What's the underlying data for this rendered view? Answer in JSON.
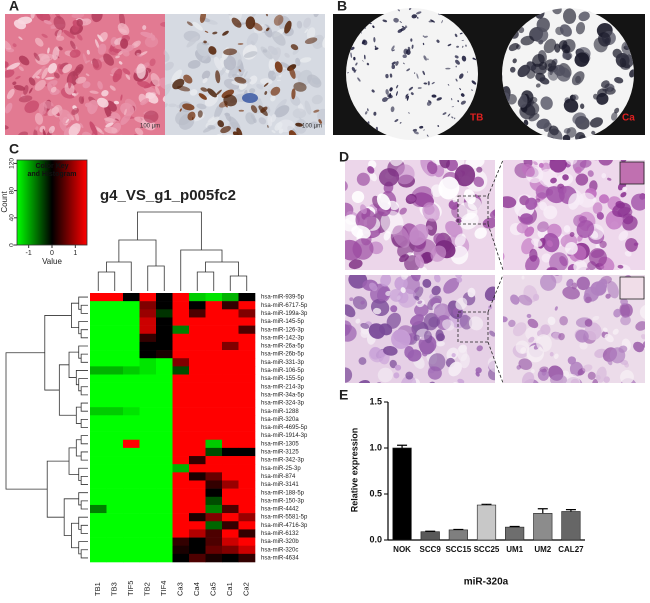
{
  "panel_labels": [
    "A",
    "B",
    "C",
    "D",
    "E"
  ],
  "panel_a": {
    "scale_bars": [
      "100 µm",
      "100 µm"
    ]
  },
  "panel_b": {
    "labels": [
      "TB",
      "Ca"
    ]
  },
  "chart_data": [
    {
      "type": "heatmap",
      "title": "g4_VS_g1_p005fc2",
      "color_key": {
        "title": [
          "Color Key",
          "and Histogram"
        ],
        "xlabel": "Value",
        "ylabel": "Count",
        "xlim": [
          -1.5,
          1.5
        ],
        "xticks": [
          -1,
          0,
          1
        ],
        "ylim": [
          0,
          125
        ],
        "yticks": [
          0,
          40,
          80,
          120
        ]
      },
      "colors": {
        "low": "#00ff00",
        "mid": "#000000",
        "high": "#ff0000"
      },
      "columns": [
        "TB1",
        "TB3",
        "TIF5",
        "TB2",
        "TIF4",
        "Ca3",
        "Ca4",
        "Ca5",
        "Ca1",
        "Ca2"
      ],
      "rows": [
        "hsa-miR-939-5p",
        "hsa-miR-6717-5p",
        "hsa-miR-199a-3p",
        "hsa-miR-145-5p",
        "hsa-miR-126-3p",
        "hsa-miR-142-3p",
        "hsa-miR-26a-5p",
        "hsa-miR-26b-5p",
        "hsa-miR-331-3p",
        "hsa-miR-106-5p",
        "hsa-miR-155-5p",
        "hsa-miR-214-3p",
        "hsa-miR-34a-5p",
        "hsa-miR-324-3p",
        "hsa-miR-1288",
        "hsa-miR-320a",
        "hsa-miR-4695-5p",
        "hsa-miR-1914-3p",
        "hsa-miR-1305",
        "hsa-miR-3125",
        "hsa-miR-342-3p",
        "hsa-miR-25-3p",
        "hsa-miR-874",
        "hsa-miR-3141",
        "hsa-miR-188-5p",
        "hsa-miR-150-3p",
        "hsa-miR-4442",
        "hsa-miR-5581-5p",
        "hsa-miR-4716-3p",
        "hsa-miR-6132",
        "hsa-miR-320b",
        "hsa-miR-320c",
        "hsa-miR-4634"
      ],
      "values": [
        [
          1,
          1,
          0,
          1,
          0,
          1,
          -0.8,
          -0.9,
          -0.7,
          0
        ],
        [
          -1,
          -1,
          -1,
          0.5,
          0,
          1,
          0,
          1,
          0.2,
          1
        ],
        [
          -1,
          -1,
          -1,
          0.6,
          -0.2,
          1,
          0.3,
          1,
          1,
          0.5
        ],
        [
          -1,
          -1,
          -1,
          0.8,
          0,
          1,
          1,
          1,
          1,
          1
        ],
        [
          -1,
          -1,
          -1,
          0.8,
          0,
          -0.5,
          1,
          1,
          1,
          0.3
        ],
        [
          -1,
          -1,
          -1,
          0.2,
          0,
          1,
          1,
          1,
          1,
          1
        ],
        [
          -1,
          -1,
          -1,
          0,
          0,
          1,
          1,
          1,
          0.5,
          1
        ],
        [
          -1,
          -1,
          -1,
          0,
          0.1,
          1,
          1,
          1,
          1,
          1
        ],
        [
          -1,
          -1,
          -1,
          -0.9,
          -1,
          0.5,
          1,
          1,
          1,
          1
        ],
        [
          -0.7,
          -0.7,
          -0.8,
          -0.9,
          -1,
          -0.3,
          1,
          1,
          1,
          1
        ],
        [
          -1,
          -1,
          -1,
          -1,
          -1,
          1,
          1,
          1,
          1,
          1
        ],
        [
          -1,
          -1,
          -1,
          -1,
          -1,
          1,
          1,
          1,
          1,
          1
        ],
        [
          -1,
          -1,
          -1,
          -1,
          -1,
          1,
          1,
          1,
          1,
          1
        ],
        [
          -1,
          -1,
          -1,
          -1,
          -1,
          1,
          1,
          1,
          1,
          1
        ],
        [
          -0.8,
          -0.8,
          -0.9,
          -1,
          -1,
          1,
          1,
          1,
          1,
          1
        ],
        [
          -1,
          -1,
          -1,
          -1,
          -1,
          1,
          1,
          1,
          1,
          1
        ],
        [
          -1,
          -1,
          -1,
          -1,
          -1,
          1,
          1,
          1,
          1,
          1
        ],
        [
          -1,
          -1,
          -1,
          -1,
          -1,
          1,
          1,
          1,
          1,
          1
        ],
        [
          -1,
          -1,
          1,
          -1,
          -1,
          1,
          1,
          -0.8,
          1,
          1
        ],
        [
          -1,
          -1,
          -1,
          -1,
          -1,
          1,
          1,
          -0.3,
          0,
          0
        ],
        [
          -1,
          -1,
          -1,
          -1,
          -1,
          1,
          0.2,
          1,
          1,
          1
        ],
        [
          -1,
          -1,
          -1,
          -1,
          -1,
          -0.7,
          1,
          1,
          1,
          1
        ],
        [
          -1,
          -1,
          -1,
          -1,
          -1,
          1,
          0.1,
          0.4,
          1,
          1
        ],
        [
          -1,
          -1,
          -1,
          -1,
          -1,
          1,
          1,
          0.2,
          0.6,
          1
        ],
        [
          -1,
          -1,
          -1,
          -1,
          -1,
          1,
          1,
          0,
          1,
          1
        ],
        [
          -1,
          -1,
          -1,
          -1,
          -1,
          1,
          1,
          -0.3,
          1,
          1
        ],
        [
          -0.5,
          -1,
          -1,
          -1,
          -1,
          1,
          1,
          -0.5,
          0.3,
          1
        ],
        [
          -1,
          -1,
          -1,
          -1,
          -1,
          1,
          0.1,
          0.5,
          1,
          0.6
        ],
        [
          -1,
          -1,
          -1,
          -1,
          -1,
          1,
          1,
          -0.4,
          0.2,
          1
        ],
        [
          -1,
          -1,
          -1,
          -1,
          -1,
          1,
          0.7,
          0.3,
          1,
          0.2
        ],
        [
          -1,
          -1,
          -1,
          -1,
          -1,
          0.2,
          0,
          0.3,
          0.8,
          1
        ],
        [
          -1,
          -1,
          -1,
          -1,
          -1,
          0.1,
          0,
          0.4,
          0.5,
          0.8
        ],
        [
          -1,
          -1,
          -1,
          -1,
          -1,
          0,
          0.3,
          0.1,
          0,
          0.2
        ]
      ]
    },
    {
      "type": "bar",
      "ylabel": "Relative expression",
      "xlabel": "miR-320a",
      "categories": [
        "NOK",
        "SCC9",
        "SCC15",
        "SCC25",
        "UM1",
        "UM2",
        "CAL27"
      ],
      "values": [
        1.0,
        0.09,
        0.11,
        0.38,
        0.14,
        0.29,
        0.31
      ],
      "errors": [
        0.03,
        0.005,
        0.005,
        0.008,
        0.007,
        0.05,
        0.02
      ],
      "colors": [
        "#000000",
        "#595959",
        "#7f7f7f",
        "#c8c8c8",
        "#6e6e6e",
        "#8c8c8c",
        "#666666"
      ],
      "ylim": [
        0,
        1.5
      ],
      "yticks": [
        {
          "value": 0,
          "label": "0.0"
        },
        0.5,
        {
          "value": 1,
          "label": "1.0"
        },
        1.5
      ]
    }
  ]
}
